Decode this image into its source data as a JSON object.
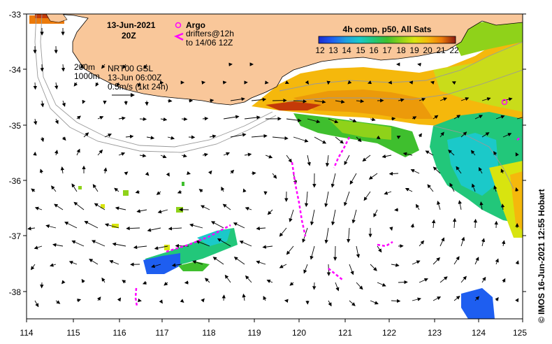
{
  "map": {
    "date_label": "13-Jun-2021",
    "time_label": "20Z",
    "argo_label": "Argo",
    "drifters_label": "drifters@12h",
    "drifters_until": "to 14/06 12Z",
    "colorbar_title": "4h comp, p50, All Sats",
    "colorbar_ticks": [
      "12",
      "13",
      "14",
      "15",
      "16",
      "17",
      "18",
      "19",
      "20",
      "21",
      "22"
    ],
    "contour_200": "200m",
    "contour_1000": "1000m",
    "altimetry_label": "NRT00 GSL",
    "altimetry_time": "13-Jun 06:00Z",
    "velocity_scale": "0.5m/s (1kt 24h)",
    "lon_ticks": [
      "114",
      "115",
      "116",
      "117",
      "118",
      "119",
      "120",
      "121",
      "122",
      "123",
      "124",
      "125"
    ],
    "lat_ticks": [
      "-33",
      "-34",
      "-35",
      "-36",
      "-37",
      "-38"
    ],
    "credit": "© IMOS 16-Jun-2021 12:55 Hobart",
    "colors": {
      "land": "#f9c79a",
      "argo": "#ff00ff",
      "drifter": "#ff00ff",
      "colorbar": [
        "#1a2bd0",
        "#1e5ef0",
        "#1f9fe0",
        "#1bc9c9",
        "#22c77a",
        "#3fbf2e",
        "#8fd21a",
        "#d8e40f",
        "#f5b80c",
        "#ec7a0a",
        "#c43a08",
        "#8a1a10"
      ]
    }
  }
}
